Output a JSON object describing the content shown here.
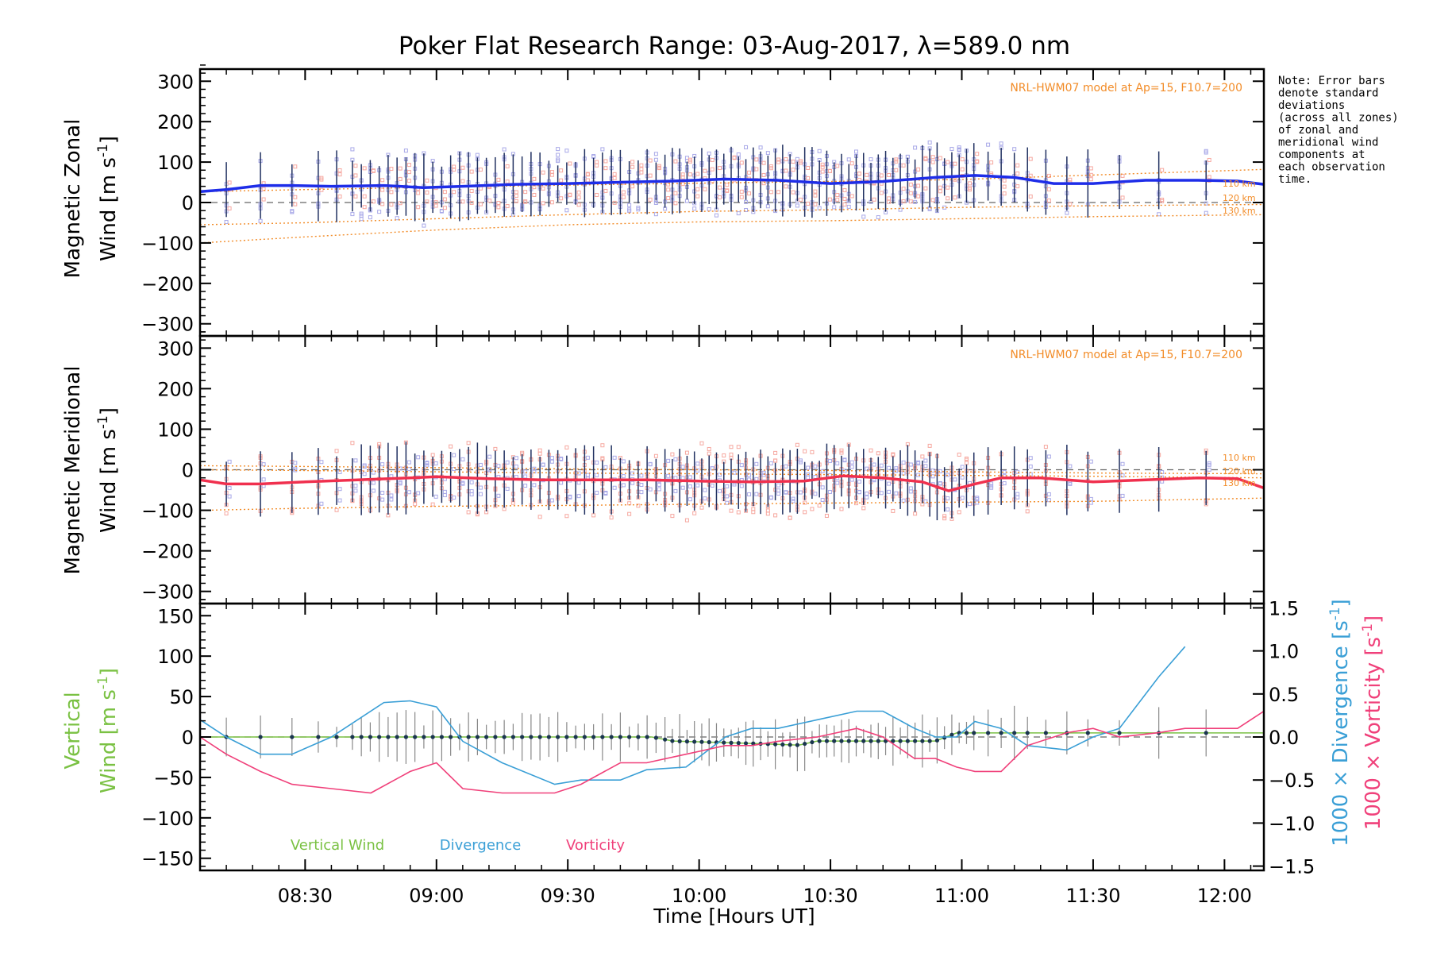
{
  "title": "Poker Flat Research Range: 03-Aug-2017, λ=589.0 nm",
  "note_lines": [
    "Note: Error bars",
    "denote standard",
    "deviations",
    "(across all zones)",
    "of zonal and",
    "meridional wind",
    "components at",
    "each observation",
    "time."
  ],
  "colors": {
    "zonal": "#1e2de8",
    "meridional": "#f0304e",
    "vertical": "#7ac143",
    "divergence": "#3a9fd6",
    "vorticity": "#f0407a",
    "model": "#f28c28",
    "zone_zonal": "#a9a9e8",
    "zone_merid": "#f6a8a0",
    "errorbar": "#203060"
  },
  "chart_data": [
    {
      "type": "line",
      "panel": "zonal",
      "ylabel_line1": "Magnetic Zonal",
      "ylabel_line2": "Wind [m s",
      "ylabel_sup": "-1",
      "ylabel_close": "]",
      "ylim": [
        -330,
        330
      ],
      "yticks": [
        300,
        200,
        100,
        0,
        -100,
        -200,
        -300
      ],
      "yticklabels": [
        "300",
        "200",
        "100",
        "0",
        "−100",
        "−200",
        "−300"
      ],
      "xlim": [
        8.1,
        12.15
      ],
      "model_label": "NRL-HWM07 model at Ap=15, F10.7=200",
      "km_labels": [
        "110 km",
        "120 km",
        "130 km"
      ],
      "series": [
        {
          "role": "mean",
          "x": [
            8.1,
            8.2,
            8.33,
            8.45,
            8.6,
            8.8,
            8.95,
            9.1,
            9.3,
            9.5,
            9.7,
            9.9,
            10.1,
            10.3,
            10.5,
            10.7,
            10.9,
            11.05,
            11.2,
            11.35,
            11.5,
            11.7,
            11.9,
            12.05,
            12.15
          ],
          "y": [
            27,
            32,
            42,
            42,
            40,
            42,
            37,
            40,
            45,
            47,
            50,
            53,
            58,
            55,
            47,
            52,
            62,
            67,
            62,
            47,
            47,
            55,
            55,
            53,
            45
          ]
        },
        {
          "role": "model-110",
          "x": [
            8.1,
            8.5,
            9.0,
            9.5,
            10.0,
            10.5,
            11.0,
            11.5,
            12.15
          ],
          "y": [
            27,
            32,
            38,
            43,
            48,
            52,
            57,
            68,
            82
          ]
        },
        {
          "role": "model-120",
          "x": [
            8.1,
            8.5,
            9.0,
            9.5,
            10.0,
            10.5,
            11.0,
            11.5,
            12.15
          ],
          "y": [
            -55,
            -50,
            -40,
            -30,
            -22,
            -18,
            -12,
            -8,
            -5
          ]
        },
        {
          "role": "model-130",
          "x": [
            8.1,
            8.5,
            9.0,
            9.5,
            10.0,
            10.5,
            11.0,
            11.5,
            12.15
          ],
          "y": [
            -100,
            -85,
            -68,
            -55,
            -48,
            -45,
            -40,
            -35,
            -30
          ]
        }
      ]
    },
    {
      "type": "line",
      "panel": "meridional",
      "ylabel_line1": "Magnetic Meridional",
      "ylabel_line2": "Wind [m s",
      "ylabel_sup": "-1",
      "ylabel_close": "]",
      "ylim": [
        -330,
        330
      ],
      "yticks": [
        300,
        200,
        100,
        0,
        -100,
        -200,
        -300
      ],
      "yticklabels": [
        "300",
        "200",
        "100",
        "0",
        "−100",
        "−200",
        "−300"
      ],
      "xlim": [
        8.1,
        12.15
      ],
      "model_label": "NRL-HWM07 model at Ap=15, F10.7=200",
      "km_labels": [
        "110 km",
        "120 km",
        "130 km"
      ],
      "series": [
        {
          "role": "mean",
          "x": [
            8.1,
            8.2,
            8.33,
            8.5,
            8.7,
            8.9,
            9.0,
            9.2,
            9.4,
            9.6,
            9.8,
            10.0,
            10.2,
            10.4,
            10.55,
            10.7,
            10.85,
            10.95,
            11.05,
            11.15,
            11.3,
            11.5,
            11.7,
            11.9,
            12.05,
            12.15
          ],
          "y": [
            -25,
            -35,
            -35,
            -30,
            -25,
            -20,
            -17,
            -22,
            -25,
            -25,
            -25,
            -28,
            -30,
            -28,
            -15,
            -20,
            -30,
            -52,
            -35,
            -20,
            -20,
            -30,
            -25,
            -20,
            -22,
            -45
          ]
        },
        {
          "role": "model-110",
          "x": [
            8.1,
            8.5,
            9.0,
            9.5,
            10.0,
            10.5,
            11.0,
            11.5,
            12.15
          ],
          "y": [
            10,
            8,
            5,
            2,
            0,
            -2,
            -5,
            -8,
            -10
          ]
        },
        {
          "role": "model-120",
          "x": [
            8.1,
            8.5,
            9.0,
            9.5,
            10.0,
            10.5,
            11.0,
            11.5,
            12.15
          ],
          "y": [
            0,
            -2,
            -5,
            -8,
            -10,
            -12,
            -14,
            -16,
            -20
          ]
        },
        {
          "role": "model-130",
          "x": [
            8.1,
            8.5,
            9.0,
            9.5,
            10.0,
            10.5,
            11.0,
            11.5,
            12.15
          ],
          "y": [
            -100,
            -95,
            -90,
            -88,
            -85,
            -82,
            -80,
            -78,
            -70
          ]
        }
      ]
    },
    {
      "type": "line",
      "panel": "vertical",
      "ylabel_line1": "Vertical",
      "ylabel_line2": "Wind [m s",
      "ylabel_sup": "-1",
      "ylabel_close": "]",
      "ylim": [
        -165,
        165
      ],
      "yticks": [
        150,
        100,
        50,
        0,
        -50,
        -100,
        -150
      ],
      "yticklabels": [
        "150",
        "100",
        "50",
        "0",
        "−50",
        "−100",
        "−150"
      ],
      "xlim": [
        8.1,
        12.15
      ],
      "xticks": [
        8.5,
        9.0,
        9.5,
        10.0,
        10.5,
        11.0,
        11.5,
        12.0
      ],
      "xticklabels": [
        "08:30",
        "09:00",
        "09:30",
        "10:00",
        "10:30",
        "11:00",
        "11:30",
        "12:00"
      ],
      "xlabel": "Time [Hours UT]",
      "y2lim": [
        -1.55,
        1.55
      ],
      "y2ticks": [
        1.5,
        1.0,
        0.5,
        0.0,
        -0.5,
        -1.0,
        -1.5
      ],
      "y2ticklabels": [
        "1.5",
        "1.0",
        "0.5",
        "0.0",
        "−0.5",
        "−1.0",
        "−1.5"
      ],
      "y2label_div": "1000 × Divergence [s",
      "y2label_vor": "1000 × Vorticity [s",
      "y2label_sup": "-1",
      "y2label_close": "]",
      "legend": [
        "Vertical Wind",
        "Divergence",
        "Vorticity"
      ],
      "series": [
        {
          "name": "Vertical Wind",
          "axis": "left",
          "x": [
            8.1,
            8.2,
            8.33,
            8.45,
            8.6,
            8.9,
            9.3,
            9.7,
            9.82,
            9.9,
            10.2,
            10.38,
            10.45,
            10.65,
            10.9,
            10.98,
            11.2,
            11.5,
            12.15
          ],
          "y": [
            0,
            0,
            0,
            0,
            0,
            0,
            0,
            0,
            0,
            -5,
            -8,
            -10,
            -5,
            -5,
            -5,
            5,
            5,
            5,
            5
          ]
        },
        {
          "name": "Divergence",
          "axis": "right",
          "x": [
            8.1,
            8.2,
            8.33,
            8.45,
            8.6,
            8.8,
            8.9,
            9.0,
            9.1,
            9.25,
            9.45,
            9.55,
            9.7,
            9.8,
            9.95,
            10.1,
            10.2,
            10.3,
            10.45,
            10.6,
            10.7,
            10.82,
            10.9,
            10.98,
            11.05,
            11.15,
            11.25,
            11.4,
            11.5,
            11.6,
            11.75,
            11.85
          ],
          "y": [
            0.2,
            0.0,
            -0.2,
            -0.2,
            0.0,
            0.4,
            0.42,
            0.35,
            -0.05,
            -0.3,
            -0.55,
            -0.5,
            -0.5,
            -0.38,
            -0.35,
            0.0,
            0.1,
            0.1,
            0.2,
            0.3,
            0.3,
            0.1,
            0.0,
            0.0,
            0.18,
            0.1,
            -0.1,
            -0.15,
            0.0,
            0.1,
            0.7,
            1.05
          ]
        },
        {
          "name": "Vorticity",
          "axis": "right",
          "x": [
            8.1,
            8.2,
            8.33,
            8.45,
            8.6,
            8.75,
            8.9,
            9.0,
            9.1,
            9.25,
            9.45,
            9.55,
            9.7,
            9.8,
            9.95,
            10.1,
            10.2,
            10.3,
            10.45,
            10.6,
            10.7,
            10.82,
            10.9,
            10.98,
            11.05,
            11.15,
            11.25,
            11.4,
            11.5,
            11.6,
            11.75,
            11.85,
            12.05,
            12.15
          ],
          "y": [
            0.0,
            -0.2,
            -0.4,
            -0.55,
            -0.6,
            -0.65,
            -0.4,
            -0.3,
            -0.6,
            -0.65,
            -0.65,
            -0.55,
            -0.3,
            -0.3,
            -0.2,
            -0.1,
            -0.1,
            -0.05,
            0.0,
            0.1,
            0.0,
            -0.25,
            -0.25,
            -0.35,
            -0.4,
            -0.4,
            -0.1,
            0.05,
            0.1,
            0.0,
            0.05,
            0.1,
            0.1,
            0.3
          ]
        }
      ]
    }
  ]
}
